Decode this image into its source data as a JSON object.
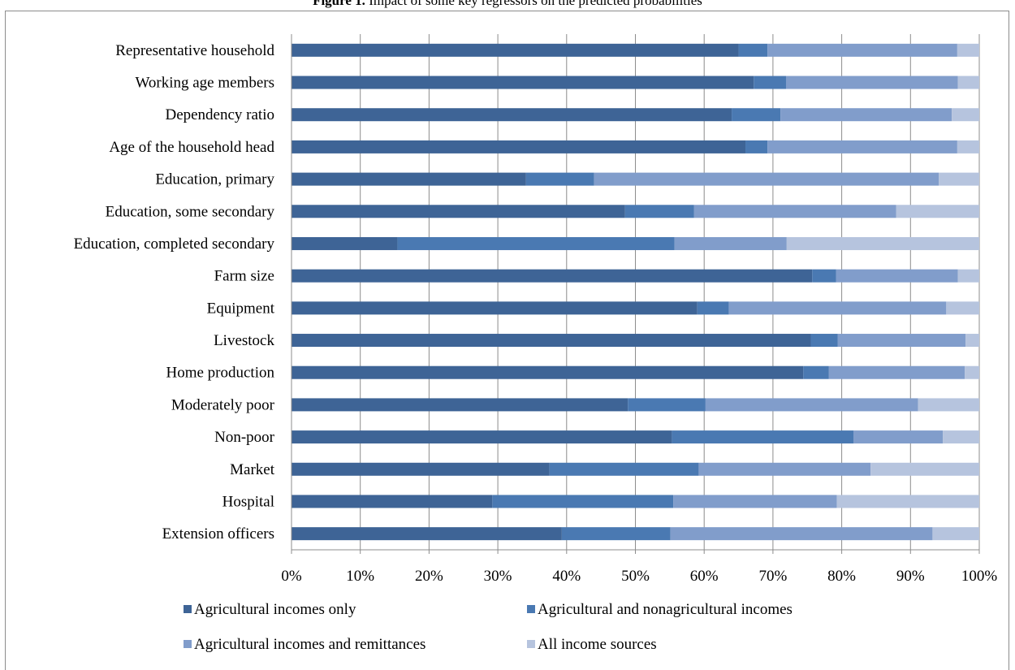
{
  "figure": {
    "label": "Figure 1.",
    "title": "Impact of some key regressors on the predicted probabilities"
  },
  "chart_data": {
    "type": "bar",
    "orientation": "horizontal",
    "stacked": "percent",
    "categories": [
      "Representative household",
      "Working age members",
      "Dependency ratio",
      "Age of the household head",
      "Education, primary",
      "Education, some secondary",
      "Education, completed secondary",
      "Farm size",
      "Equipment",
      "Livestock",
      "Home production",
      "Moderately poor",
      "Non-poor",
      "Market",
      "Hospital",
      "Extension officers"
    ],
    "series": [
      {
        "name": "Agricultural incomes only",
        "color": "#3e6496",
        "values": [
          65.0,
          67.2,
          64.0,
          66.0,
          34.1,
          48.5,
          15.4,
          75.7,
          59.0,
          75.5,
          74.4,
          48.9,
          55.3,
          37.5,
          29.2,
          39.3
        ]
      },
      {
        "name": "Agricultural and nonagricultural incomes",
        "color": "#4a79b2",
        "values": [
          4.2,
          4.7,
          7.1,
          3.2,
          9.9,
          10.0,
          40.3,
          3.5,
          4.6,
          3.9,
          3.7,
          11.3,
          26.4,
          21.7,
          26.3,
          15.8
        ]
      },
      {
        "name": "Agricultural incomes and remittances",
        "color": "#819dcb",
        "values": [
          27.6,
          25.0,
          24.9,
          27.6,
          50.1,
          29.4,
          16.3,
          17.7,
          31.6,
          18.6,
          19.8,
          30.9,
          13.0,
          25.0,
          23.8,
          38.1
        ]
      },
      {
        "name": "All income sources",
        "color": "#b6c4de",
        "values": [
          3.2,
          3.1,
          4.0,
          3.2,
          5.9,
          12.1,
          28.0,
          3.1,
          4.8,
          2.0,
          2.1,
          8.9,
          5.3,
          15.8,
          20.7,
          6.8
        ]
      }
    ],
    "x_ticks": [
      "0%",
      "10%",
      "20%",
      "30%",
      "40%",
      "50%",
      "60%",
      "70%",
      "80%",
      "90%",
      "100%"
    ],
    "xlim": [
      0,
      100
    ],
    "grid": "vertical",
    "legend": "bottom"
  }
}
